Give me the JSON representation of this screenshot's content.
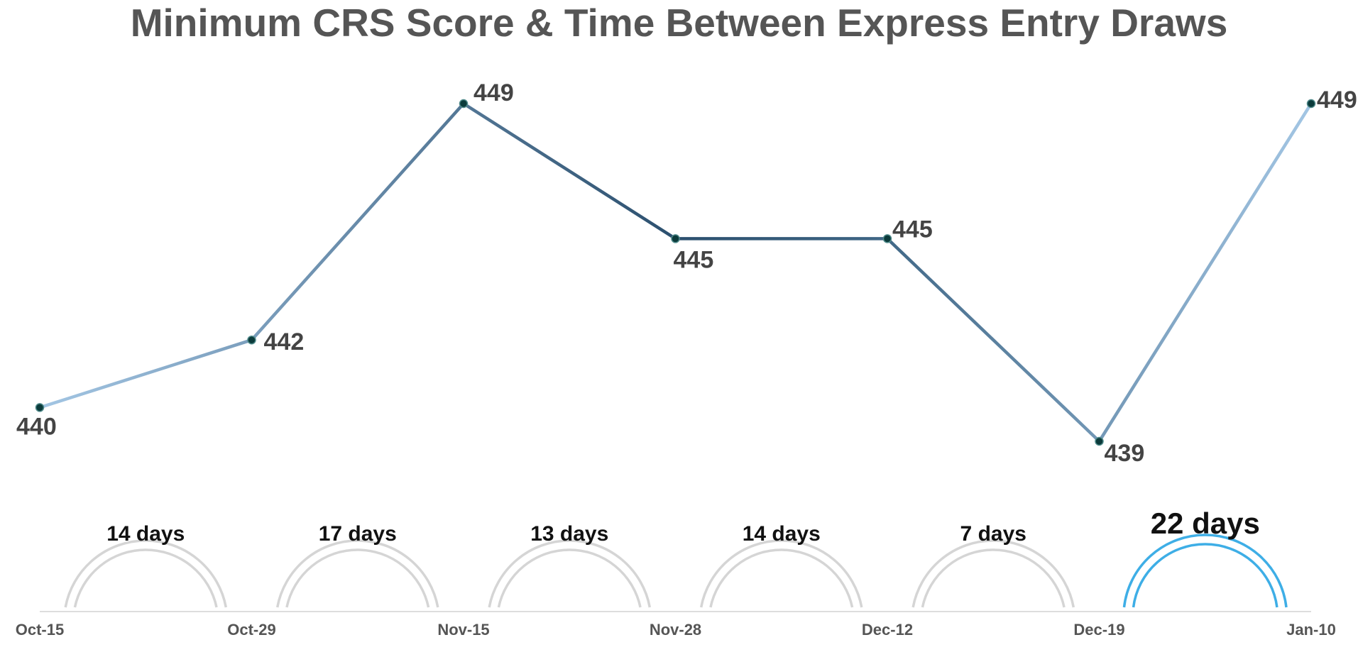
{
  "chart_data": {
    "type": "line",
    "title": "Minimum CRS Score & Time Between Express Entry Draws",
    "xlabel": "",
    "ylabel": "",
    "categories": [
      "Oct-15",
      "Oct-29",
      "Nov-15",
      "Nov-28",
      "Dec-12",
      "Dec-19",
      "Jan-10"
    ],
    "values": [
      440,
      442,
      449,
      445,
      445,
      439,
      449
    ],
    "value_labels": [
      "440",
      "442",
      "449",
      "445",
      "445",
      "439",
      "449"
    ],
    "ylim": [
      438,
      450
    ],
    "grid": false,
    "legend": "none",
    "intervals": [
      {
        "from": "Oct-15",
        "to": "Oct-29",
        "days": 14,
        "label": "14 days",
        "highlight": false
      },
      {
        "from": "Oct-29",
        "to": "Nov-15",
        "days": 17,
        "label": "17 days",
        "highlight": false
      },
      {
        "from": "Nov-15",
        "to": "Nov-28",
        "days": 13,
        "label": "13 days",
        "highlight": false
      },
      {
        "from": "Nov-28",
        "to": "Dec-12",
        "days": 14,
        "label": "14 days",
        "highlight": false
      },
      {
        "from": "Dec-12",
        "to": "Dec-19",
        "days": 7,
        "label": "7 days",
        "highlight": false
      },
      {
        "from": "Dec-19",
        "to": "Jan-10",
        "days": 22,
        "label": "22 days",
        "highlight": true
      }
    ],
    "colors": {
      "line_light": "#a3c6e4",
      "line_dark": "#2b4f6e",
      "marker": "#0b3b3b",
      "arc_default": "#d5d5d5",
      "arc_highlight": "#3eaee6",
      "axis": "#dddddd"
    }
  }
}
